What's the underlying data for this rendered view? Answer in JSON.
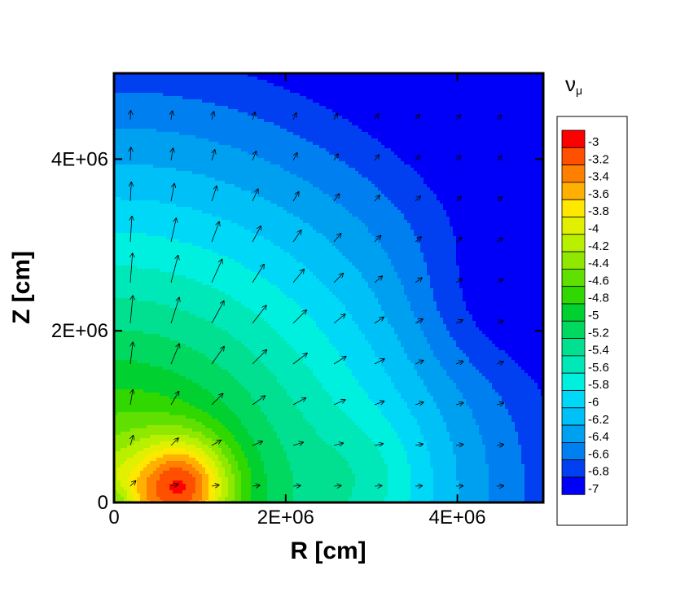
{
  "chart_data": {
    "type": "heatmap",
    "colorbar_title": "ν",
    "colorbar_title_sub": "μ",
    "xlabel": "R [cm]",
    "ylabel": "Z [cm]",
    "xlim": [
      0,
      5000000
    ],
    "ylim": [
      0,
      5000000
    ],
    "xticks": [
      {
        "value": 0,
        "label": "0"
      },
      {
        "value": 2000000,
        "label": "2E+06"
      },
      {
        "value": 4000000,
        "label": "4E+06"
      }
    ],
    "yticks": [
      {
        "value": 0,
        "label": "0"
      },
      {
        "value": 2000000,
        "label": "2E+06"
      },
      {
        "value": 4000000,
        "label": "4E+06"
      }
    ],
    "color_levels": [
      {
        "value": -3,
        "label": "-3",
        "color": "#ff0000"
      },
      {
        "value": -3.2,
        "label": "-3.2",
        "color": "#ff5000"
      },
      {
        "value": -3.4,
        "label": "-3.4",
        "color": "#ff8000"
      },
      {
        "value": -3.6,
        "label": "-3.6",
        "color": "#ffb000"
      },
      {
        "value": -3.8,
        "label": "-3.8",
        "color": "#ffe800"
      },
      {
        "value": -4,
        "label": "-4",
        "color": "#e0f000"
      },
      {
        "value": -4.2,
        "label": "-4.2",
        "color": "#b8f000"
      },
      {
        "value": -4.4,
        "label": "-4.4",
        "color": "#90e800"
      },
      {
        "value": -4.6,
        "label": "-4.6",
        "color": "#60e000"
      },
      {
        "value": -4.8,
        "label": "-4.8",
        "color": "#30d800"
      },
      {
        "value": -5,
        "label": "-5",
        "color": "#00d030"
      },
      {
        "value": -5.2,
        "label": "-5.2",
        "color": "#00d860"
      },
      {
        "value": -5.4,
        "label": "-5.4",
        "color": "#00e090"
      },
      {
        "value": -5.6,
        "label": "-5.6",
        "color": "#00e8b8"
      },
      {
        "value": -5.8,
        "label": "-5.8",
        "color": "#00f0e0"
      },
      {
        "value": -6,
        "label": "-6",
        "color": "#00d8f8"
      },
      {
        "value": -6.2,
        "label": "-6.2",
        "color": "#00c0f8"
      },
      {
        "value": -6.4,
        "label": "-6.4",
        "color": "#00a0f0"
      },
      {
        "value": -6.6,
        "label": "-6.6",
        "color": "#0080f0"
      },
      {
        "value": -6.8,
        "label": "-6.8",
        "color": "#0040f0"
      },
      {
        "value": -7,
        "label": "-7",
        "color": "#0000f8"
      }
    ],
    "hotspot": {
      "r": 800000,
      "z": 200000,
      "value": -3
    },
    "vector_field": "radial outward arrows; longest near the axis at Z approx 2E+06 to 4E+06, short elsewhere",
    "grid": false,
    "legend_position": "right"
  }
}
